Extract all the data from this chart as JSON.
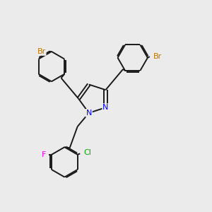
{
  "background_color": "#ebebeb",
  "bond_color": "#1a1a1a",
  "bond_width": 1.4,
  "dbo": 0.055,
  "atom_colors": {
    "Br": "#b87800",
    "N": "#0000ee",
    "F": "#ee00ee",
    "Cl": "#00aa00"
  },
  "figsize": [
    3.0,
    3.0
  ],
  "dpi": 100,
  "xlim": [
    0,
    10
  ],
  "ylim": [
    0,
    10
  ]
}
